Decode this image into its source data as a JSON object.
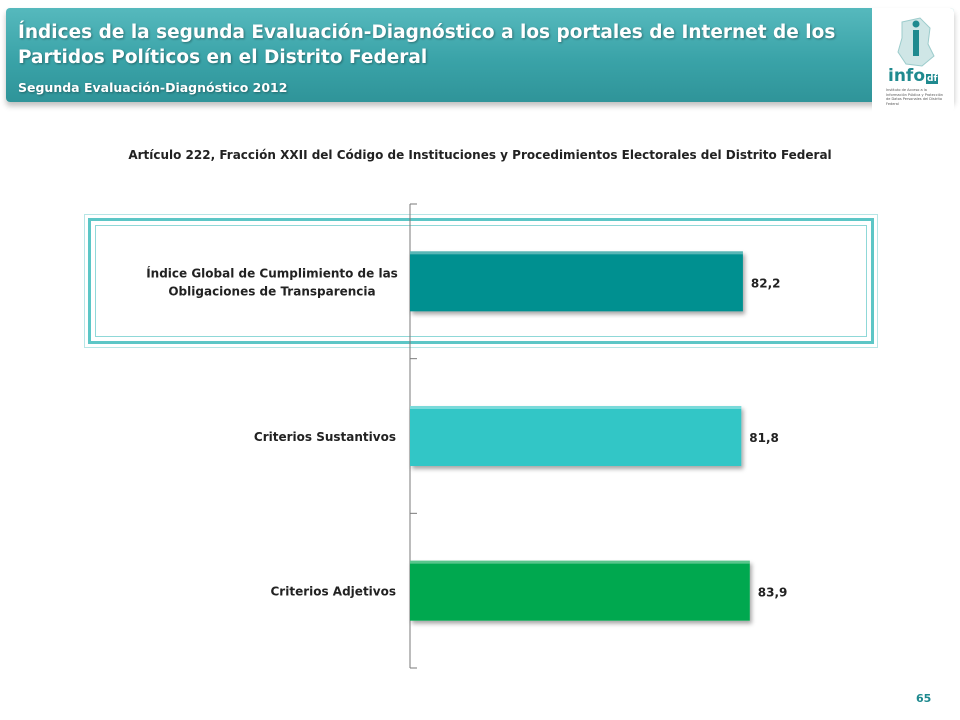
{
  "header": {
    "title": "Índices de la segunda Evaluación-Diagnóstico a los portales de Internet de los Partidos Políticos en el Distrito Federal",
    "subtitle": "Segunda Evaluación-Diagnóstico 2012"
  },
  "logo": {
    "word": "info",
    "suffix": "df",
    "caption": "Instituto de Acceso a la Información Pública y Protección de Datos Personales del Distrito Federal",
    "icon": "df-map-logo-icon"
  },
  "chart_data": {
    "type": "bar",
    "orientation": "horizontal",
    "title": "Artículo 222, Fracción XXII del Código de Instituciones y Procedimientos Electorales del Distrito Federal",
    "categories": [
      [
        "Índice Global de Cumplimiento de las",
        "Obligaciones de Transparencia"
      ],
      [
        "Criterios Sustantivos"
      ],
      [
        "Criterios Adjetivos"
      ]
    ],
    "values": [
      82.2,
      81.8,
      83.9
    ],
    "value_labels": [
      "82,2",
      "81,8",
      "83,9"
    ],
    "colors": [
      "#009090",
      "#33c6c6",
      "#00a84f"
    ],
    "xlim": [
      0,
      100
    ],
    "grid": false,
    "highlighted_category": 0
  },
  "footer": {
    "page_number": "65"
  }
}
